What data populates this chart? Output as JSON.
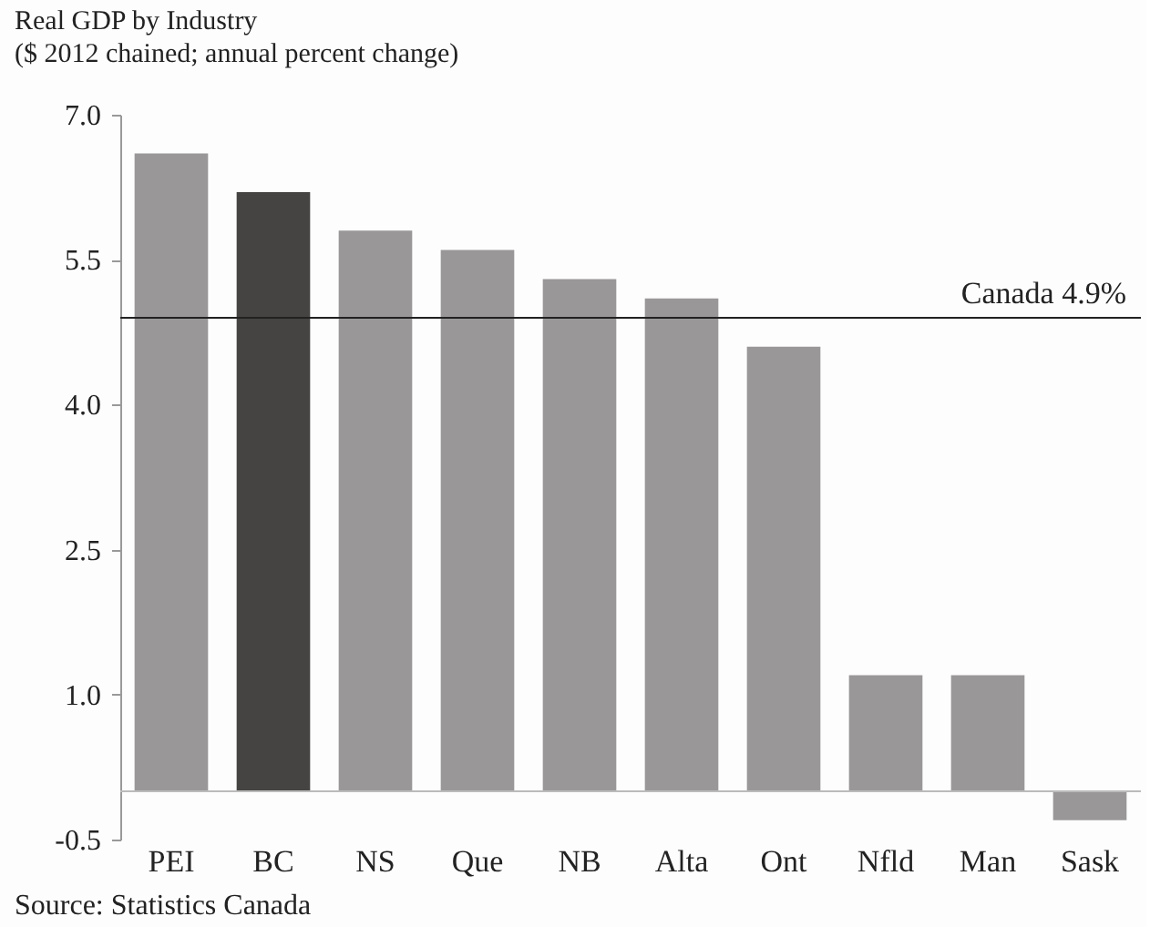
{
  "chart_data": {
    "type": "bar",
    "title": "Real GDP by Industry",
    "subtitle": "($ 2012 chained; annual percent change)",
    "categories": [
      "PEI",
      "BC",
      "NS",
      "Que",
      "NB",
      "Alta",
      "Ont",
      "Nfld",
      "Man",
      "Sask"
    ],
    "values": [
      6.6,
      6.2,
      5.8,
      5.6,
      5.3,
      5.1,
      4.6,
      1.2,
      1.2,
      -0.3
    ],
    "colors": [
      "#9a9798",
      "#454442",
      "#9a9798",
      "#9a9798",
      "#9a9798",
      "#9a9798",
      "#9a9798",
      "#9a9798",
      "#9a9798",
      "#9a9798"
    ],
    "ylim": [
      -0.5,
      7.0
    ],
    "yticks": [
      {
        "value": 7.0,
        "label": "7.0"
      },
      {
        "value": 5.5,
        "label": "5.5"
      },
      {
        "value": 4.0,
        "label": "4.0"
      },
      {
        "value": 2.5,
        "label": "2.5"
      },
      {
        "value": 1.0,
        "label": "1.0"
      },
      {
        "value": -0.5,
        "label": "-0.5"
      }
    ],
    "ref_lines": [
      {
        "axis": "y",
        "value": 4.9,
        "label": "Canada 4.9%",
        "color": "#222222"
      }
    ],
    "annotations": [
      "Source: Statistics Canada"
    ],
    "grid": false
  }
}
